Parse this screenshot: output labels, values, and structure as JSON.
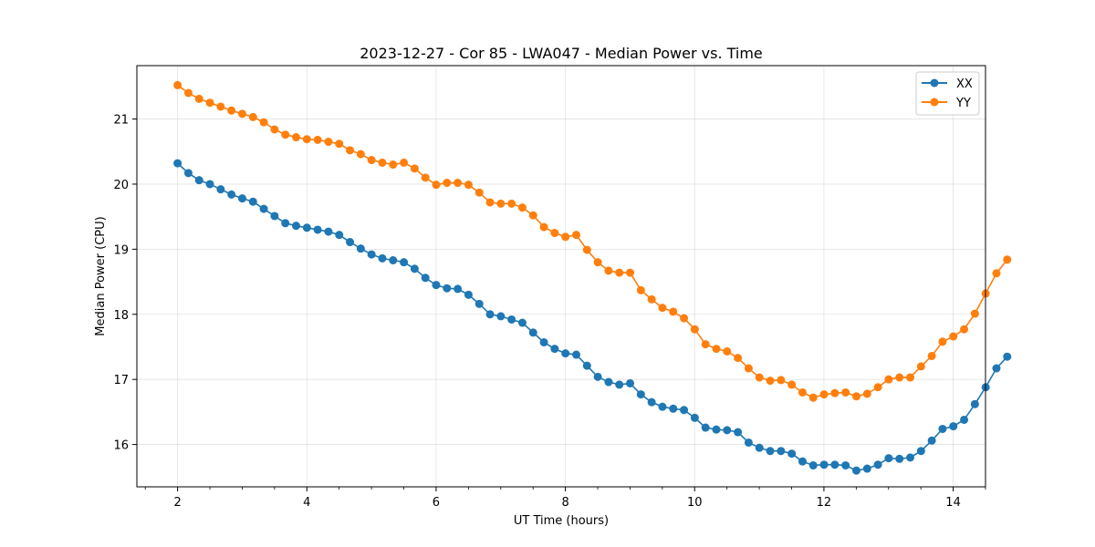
{
  "chart_data": {
    "type": "line",
    "title": "2023-12-27 - Cor 85 - LWA047 - Median Power vs. Time",
    "xlabel": "UT Time (hours)",
    "ylabel": "Median Power (CPU)",
    "xlim": [
      1.37,
      14.5
    ],
    "ylim": [
      15.35,
      21.82
    ],
    "xticks": [
      2,
      4,
      6,
      8,
      10,
      12,
      14
    ],
    "xtick_labels": [
      "2",
      "4",
      "6",
      "8",
      "10",
      "12",
      "14"
    ],
    "yticks": [
      16,
      17,
      18,
      19,
      20,
      21
    ],
    "ytick_labels": [
      "16",
      "17",
      "18",
      "19",
      "20",
      "21"
    ],
    "grid": true,
    "legend_position": "top-right",
    "x_start": 2.0,
    "x_step": 0.1667,
    "series": [
      {
        "name": "XX",
        "color": "#1f77b4",
        "values": [
          20.32,
          20.17,
          20.06,
          20.0,
          19.92,
          19.84,
          19.78,
          19.73,
          19.62,
          19.51,
          19.4,
          19.36,
          19.33,
          19.3,
          19.27,
          19.22,
          19.11,
          19.01,
          18.92,
          18.86,
          18.83,
          18.8,
          18.7,
          18.56,
          18.45,
          18.4,
          18.39,
          18.3,
          18.16,
          18.0,
          17.97,
          17.92,
          17.87,
          17.72,
          17.57,
          17.47,
          17.4,
          17.38,
          17.21,
          17.04,
          16.96,
          16.92,
          16.94,
          16.77,
          16.65,
          16.58,
          16.55,
          16.53,
          16.41,
          16.26,
          16.23,
          16.22,
          16.19,
          16.03,
          15.95,
          15.9,
          15.9,
          15.86,
          15.74,
          15.68,
          15.69,
          15.69,
          15.68,
          15.6,
          15.63,
          15.69,
          15.79,
          15.78,
          15.8,
          15.9,
          16.06,
          16.24,
          16.28,
          16.38,
          16.62,
          16.88,
          17.17,
          17.35
        ]
      },
      {
        "name": "YY",
        "color": "#ff7f0e",
        "values": [
          21.52,
          21.4,
          21.31,
          21.25,
          21.19,
          21.13,
          21.08,
          21.03,
          20.95,
          20.84,
          20.76,
          20.72,
          20.69,
          20.68,
          20.65,
          20.62,
          20.52,
          20.46,
          20.37,
          20.33,
          20.3,
          20.33,
          20.24,
          20.1,
          19.99,
          20.02,
          20.02,
          19.99,
          19.87,
          19.72,
          19.7,
          19.7,
          19.64,
          19.52,
          19.34,
          19.25,
          19.19,
          19.22,
          18.99,
          18.8,
          18.67,
          18.64,
          18.64,
          18.37,
          18.23,
          18.1,
          18.04,
          17.94,
          17.77,
          17.54,
          17.47,
          17.43,
          17.33,
          17.17,
          17.03,
          16.98,
          16.99,
          16.92,
          16.8,
          16.72,
          16.77,
          16.79,
          16.8,
          16.74,
          16.78,
          16.88,
          17.0,
          17.03,
          17.03,
          17.2,
          17.36,
          17.58,
          17.66,
          17.77,
          18.01,
          18.32,
          18.63,
          18.84
        ]
      }
    ]
  }
}
